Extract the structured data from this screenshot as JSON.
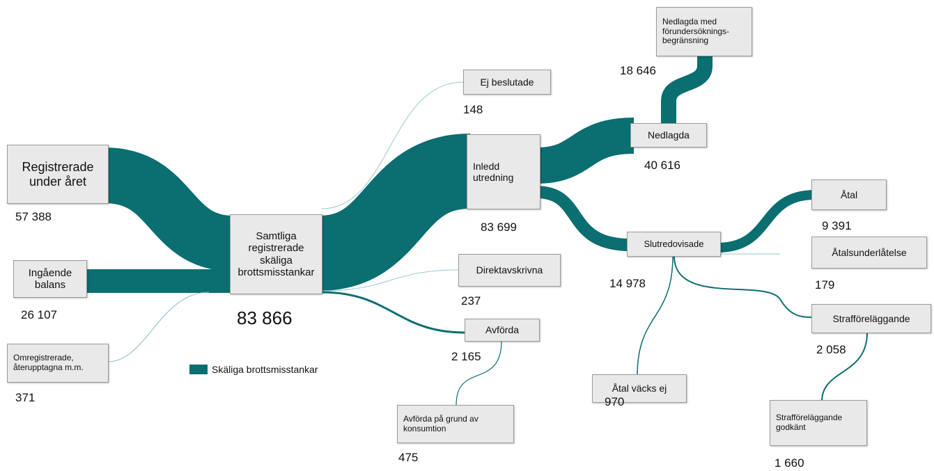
{
  "legend": "Skäliga brottsmisstankar",
  "nodes": [
    {
      "label": "Registrerade under året",
      "value": "57 388"
    },
    {
      "label": "Ingående balans",
      "value": "26 107"
    },
    {
      "label": "Omregistrerade, återupptagna m.m.",
      "value": "371"
    },
    {
      "label": "Samtliga registrerade skäliga brottsmisstankar",
      "value": "83 866"
    },
    {
      "label": "Ej beslutade",
      "value": "148"
    },
    {
      "label": "Inledd utredning",
      "value": "83 699"
    },
    {
      "label": "Direktavskrivna",
      "value": "237"
    },
    {
      "label": "Avförda",
      "value": "2 165"
    },
    {
      "label": "Avförda på grund av konsumtion",
      "value": "475"
    },
    {
      "label": "Nedlagda med förundersöknings-begränsning",
      "value": "18 646"
    },
    {
      "label": "Nedlagda",
      "value": "40 616"
    },
    {
      "label": "Slutredovisade",
      "value": "14 978"
    },
    {
      "label": "Åtal",
      "value": "9 391"
    },
    {
      "label": "Åtalsunderlåtelse",
      "value": "179"
    },
    {
      "label": "Strafföreläggande",
      "value": "2 058"
    },
    {
      "label": "Åtal väcks ej",
      "value": "970"
    },
    {
      "label": "Strafföreläggande godkänt",
      "value": "1 660"
    }
  ]
}
